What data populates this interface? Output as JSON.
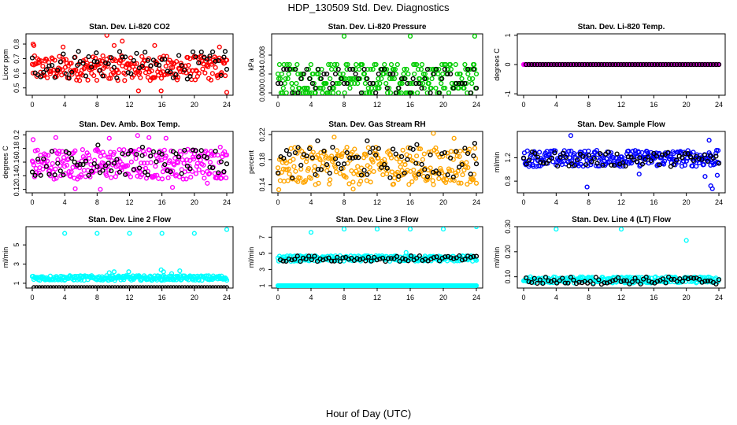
{
  "figure": {
    "title": "HDP_130509  Std. Dev. Diagnostics",
    "xlabel": "Hour of Day (UTC)"
  },
  "chart_data": [
    {
      "type": "scatter",
      "title": "Stan. Dev. Li-820 CO2",
      "ylabel": "Licor ppm",
      "xlim": [
        0,
        24
      ],
      "ylim": [
        0.45,
        0.87
      ],
      "xticks": [
        0,
        4,
        8,
        12,
        16,
        20,
        24
      ],
      "yticks": [
        0.5,
        0.6,
        0.7,
        0.8
      ],
      "colors": [
        "#ff0000",
        "#000000"
      ],
      "series": [
        {
          "color": "#ff0000",
          "x_range": [
            0,
            24
          ],
          "band": [
            0.55,
            0.72
          ],
          "outliers": [
            [
              0.1,
              0.8
            ],
            [
              0.2,
              0.79
            ],
            [
              3.8,
              0.78
            ],
            [
              9.2,
              0.86
            ],
            [
              10.1,
              0.79
            ],
            [
              11.1,
              0.82
            ],
            [
              13.1,
              0.48
            ],
            [
              15.1,
              0.79
            ],
            [
              15.9,
              0.48
            ],
            [
              23.1,
              0.78
            ],
            [
              24.0,
              0.47
            ]
          ]
        },
        {
          "color": "#000000",
          "x_range": [
            0,
            24
          ],
          "band": [
            0.56,
            0.75
          ],
          "outliers": [
            [
              5.7,
              0.75
            ],
            [
              7.9,
              0.74
            ],
            [
              23.8,
              0.75
            ]
          ]
        }
      ]
    },
    {
      "type": "scatter",
      "title": "Stan. Dev. Li-820 Pressure",
      "ylabel": "kPa",
      "xlim": [
        0,
        24
      ],
      "ylim": [
        -0.0005,
        0.0125
      ],
      "xticks": [
        0,
        4,
        8,
        12,
        16,
        20,
        24
      ],
      "yticks": [
        0.0,
        0.004,
        0.008
      ],
      "ytick_labels": [
        "0.000",
        "0.004",
        "0.008"
      ],
      "colors": [
        "#00cc00",
        "#000000"
      ],
      "series": [
        {
          "color": "#00cc00",
          "x_range": [
            0,
            24
          ],
          "levels": [
            0.0,
            0.001,
            0.002,
            0.003,
            0.004,
            0.005,
            0.006
          ],
          "outliers": [
            [
              8.0,
              0.012
            ],
            [
              16.0,
              0.012
            ],
            [
              23.8,
              0.012
            ]
          ]
        },
        {
          "color": "#000000",
          "x_range": [
            0,
            24
          ],
          "levels": [
            0.0,
            0.001,
            0.002,
            0.003,
            0.004,
            0.005
          ],
          "outliers": []
        }
      ]
    },
    {
      "type": "scatter",
      "title": "Stan. Dev. Li-820 Temp.",
      "ylabel": "degrees C",
      "xlim": [
        0,
        24
      ],
      "ylim": [
        -1.05,
        1.05
      ],
      "xticks": [
        0,
        4,
        8,
        12,
        16,
        20,
        24
      ],
      "yticks": [
        -1.0,
        0.0,
        1.0
      ],
      "colors": [
        "#ff00ff",
        "#000000"
      ],
      "series": [
        {
          "color": "#ff00ff",
          "x_range": [
            0,
            24
          ],
          "band": [
            0.0,
            0.0
          ],
          "outliers": []
        },
        {
          "color": "#000000",
          "x_range": [
            0.3,
            24
          ],
          "band": [
            0.0,
            0.0
          ],
          "outliers": []
        }
      ]
    },
    {
      "type": "scatter",
      "title": "Stan. Dev. Amb. Box Temp.",
      "ylabel": "degrees C",
      "xlim": [
        0,
        24
      ],
      "ylim": [
        0.115,
        0.205
      ],
      "xticks": [
        0,
        4,
        8,
        12,
        16,
        20,
        24
      ],
      "yticks": [
        0.12,
        0.14,
        0.16,
        0.18,
        0.2
      ],
      "colors": [
        "#ff00ff",
        "#000000"
      ],
      "series": [
        {
          "color": "#ff00ff",
          "x_range": [
            0,
            24
          ],
          "band": [
            0.135,
            0.18
          ],
          "outliers": [
            [
              0.1,
              0.193
            ],
            [
              2.9,
              0.196
            ],
            [
              5.3,
              0.121
            ],
            [
              8.4,
              0.12
            ],
            [
              9.5,
              0.195
            ],
            [
              13.0,
              0.199
            ],
            [
              14.4,
              0.196
            ],
            [
              16.5,
              0.195
            ],
            [
              17.3,
              0.123
            ],
            [
              21.6,
              0.129
            ],
            [
              23.2,
              0.182
            ]
          ]
        },
        {
          "color": "#000000",
          "x_range": [
            0,
            24
          ],
          "band": [
            0.14,
            0.178
          ],
          "outliers": [
            [
              8.1,
              0.185
            ],
            [
              13.6,
              0.182
            ]
          ]
        }
      ]
    },
    {
      "type": "scatter",
      "title": "Stan. Dev. Gas Stream RH",
      "ylabel": "percent",
      "xlim": [
        0,
        24
      ],
      "ylim": [
        0.127,
        0.225
      ],
      "xticks": [
        0,
        4,
        8,
        12,
        16,
        20,
        24
      ],
      "yticks": [
        0.14,
        0.18,
        0.22
      ],
      "colors": [
        "#ffa500",
        "#000000"
      ],
      "series": [
        {
          "color": "#ffa500",
          "x_range": [
            0,
            24
          ],
          "band": [
            0.14,
            0.2
          ],
          "outliers": [
            [
              0.1,
              0.132
            ],
            [
              6.8,
              0.216
            ],
            [
              9.1,
              0.133
            ],
            [
              18.8,
              0.222
            ],
            [
              21.3,
              0.214
            ]
          ]
        },
        {
          "color": "#000000",
          "x_range": [
            0,
            24
          ],
          "band": [
            0.15,
            0.2
          ],
          "outliers": [
            [
              4.8,
              0.21
            ],
            [
              10.8,
              0.21
            ],
            [
              16.8,
              0.204
            ],
            [
              23.8,
              0.206
            ]
          ]
        }
      ]
    },
    {
      "type": "scatter",
      "title": "Stan. Dev. Sample Flow",
      "ylabel": "ml/min",
      "xlim": [
        0,
        24
      ],
      "ylim": [
        0.6,
        1.65
      ],
      "xticks": [
        0,
        4,
        8,
        12,
        16,
        20,
        24
      ],
      "yticks": [
        0.8,
        1.2
      ],
      "colors": [
        "#0000ff",
        "#000000"
      ],
      "series": [
        {
          "color": "#0000ff",
          "x_range": [
            0,
            24
          ],
          "band": [
            1.05,
            1.33
          ],
          "outliers": [
            [
              5.8,
              1.58
            ],
            [
              7.8,
              0.7
            ],
            [
              14.2,
              0.92
            ],
            [
              22.3,
              0.88
            ],
            [
              22.8,
              1.5
            ],
            [
              23.0,
              0.72
            ],
            [
              23.2,
              0.67
            ],
            [
              23.8,
              0.9
            ]
          ]
        },
        {
          "color": "#000000",
          "x_range": [
            0,
            24
          ],
          "band": [
            1.05,
            1.3
          ],
          "outliers": []
        }
      ]
    },
    {
      "type": "scatter",
      "title": "Stan. Dev. Line 2 Flow",
      "ylabel": "ml/min",
      "xlim": [
        0,
        24
      ],
      "ylim": [
        0.5,
        6.9
      ],
      "xticks": [
        0,
        4,
        8,
        12,
        16,
        20,
        24
      ],
      "yticks": [
        1,
        3,
        5
      ],
      "colors": [
        "#00ffff",
        "#000000"
      ],
      "series": [
        {
          "color": "#00ffff",
          "x_range": [
            0,
            24
          ],
          "band": [
            1.3,
            1.8
          ],
          "outliers": [
            [
              4.0,
              6.2
            ],
            [
              8.0,
              6.2
            ],
            [
              12.0,
              6.2
            ],
            [
              16.0,
              6.2
            ],
            [
              20.0,
              6.2
            ],
            [
              24.0,
              6.6
            ],
            [
              9.5,
              2.1
            ],
            [
              10.1,
              2.2
            ],
            [
              11.9,
              2.2
            ],
            [
              15.9,
              2.4
            ],
            [
              16.2,
              2.2
            ],
            [
              18.2,
              2.3
            ],
            [
              17.2,
              2.0
            ]
          ]
        },
        {
          "color": "#000000",
          "x_range": [
            0.2,
            24
          ],
          "band": [
            0.55,
            0.55
          ],
          "outliers": []
        }
      ]
    },
    {
      "type": "scatter",
      "title": "Stan. Dev. Line 3 Flow",
      "ylabel": "ml/min",
      "xlim": [
        0,
        24
      ],
      "ylim": [
        0.7,
        8.3
      ],
      "xticks": [
        0,
        4,
        8,
        12,
        16,
        20,
        24
      ],
      "yticks": [
        1,
        3,
        5,
        7
      ],
      "colors": [
        "#00ffff",
        "#000000"
      ],
      "series": [
        {
          "color": "#00ffff",
          "x_range": [
            0,
            24
          ],
          "band": [
            4.0,
            4.7
          ],
          "outliers": [
            [
              4.0,
              7.6
            ],
            [
              8.0,
              8.0
            ],
            [
              12.0,
              8.0
            ],
            [
              16.0,
              8.0
            ],
            [
              20.0,
              8.0
            ],
            [
              24.0,
              8.3
            ],
            [
              15.5,
              5.1
            ]
          ]
        },
        {
          "color": "#00ffff",
          "x_range": [
            0,
            24
          ],
          "band": [
            1.0,
            1.0
          ],
          "outliers": []
        },
        {
          "color": "#000000",
          "x_range": [
            0.3,
            24
          ],
          "band": [
            4.0,
            4.7
          ],
          "outliers": []
        }
      ]
    },
    {
      "type": "scatter",
      "title": "Stan. Dev. Line 4 (LT) Flow",
      "ylabel": "ml/min",
      "xlim": [
        0,
        24
      ],
      "ylim": [
        0.055,
        0.3
      ],
      "xticks": [
        0,
        4,
        8,
        12,
        16,
        20,
        24
      ],
      "yticks": [
        0.1,
        0.2,
        0.3
      ],
      "ytick_labels": [
        "0.10",
        "0.20",
        "0.30"
      ],
      "colors": [
        "#00ffff",
        "#000000"
      ],
      "series": [
        {
          "color": "#00ffff",
          "x_range": [
            0,
            24
          ],
          "band": [
            0.075,
            0.1
          ],
          "outliers": [
            [
              4.0,
              0.29
            ],
            [
              12.0,
              0.29
            ],
            [
              20.0,
              0.245
            ]
          ]
        },
        {
          "color": "#000000",
          "x_range": [
            0.3,
            24
          ],
          "band": [
            0.07,
            0.1
          ],
          "outliers": []
        }
      ]
    }
  ]
}
